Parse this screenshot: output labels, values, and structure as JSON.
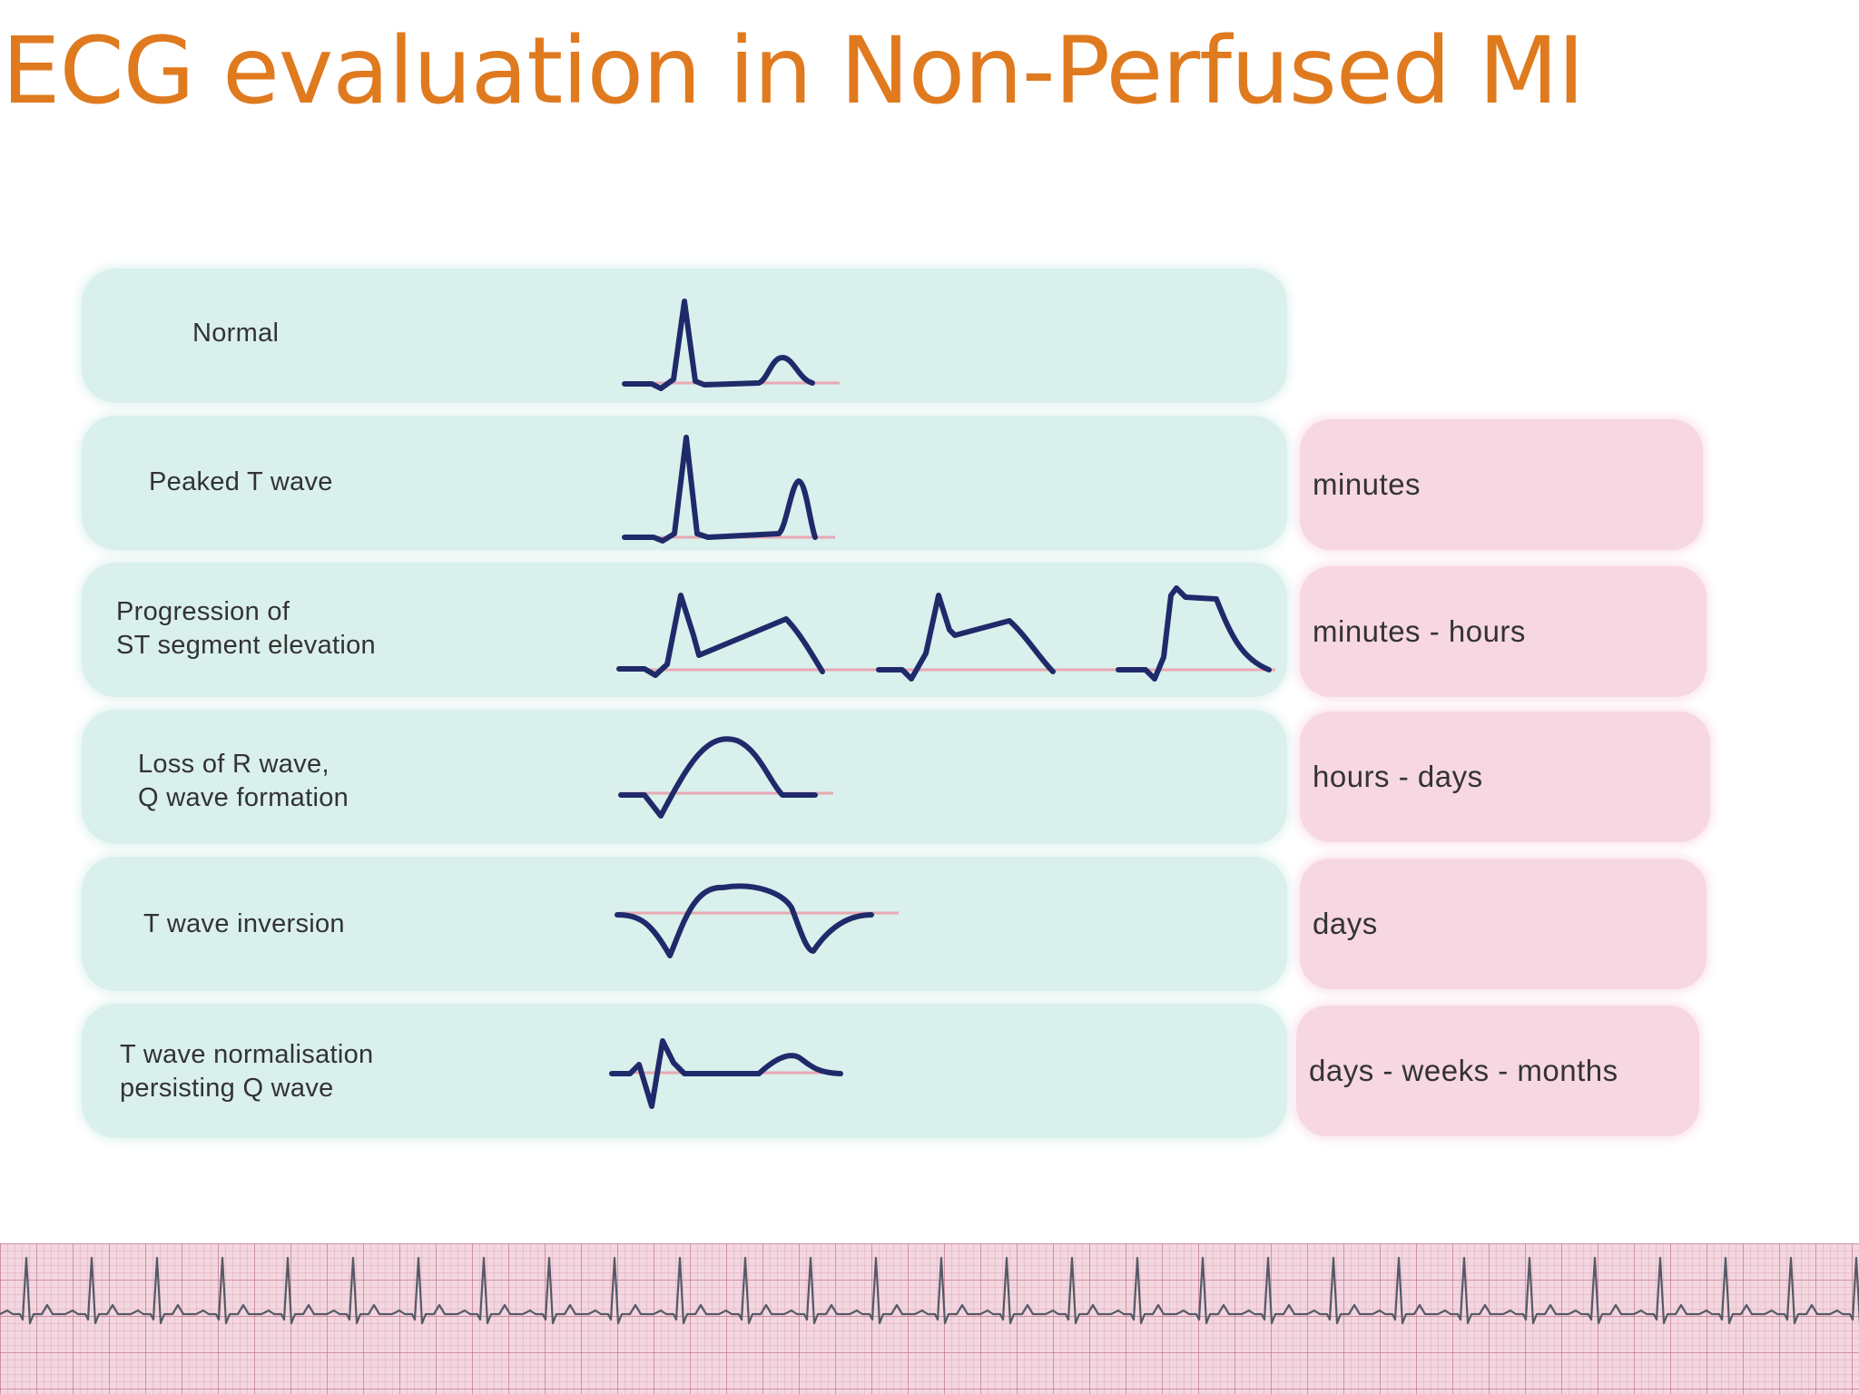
{
  "title": "ECG evaluation in Non-Perfused MI",
  "stages": [
    {
      "label": "Normal",
      "time": ""
    },
    {
      "label": "Peaked T wave",
      "time": "minutes"
    },
    {
      "label": "Progression of\nST segment elevation",
      "time": "minutes - hours"
    },
    {
      "label": "Loss of R wave,\nQ wave formation",
      "time": "hours - days"
    },
    {
      "label": "T wave inversion",
      "time": "days"
    },
    {
      "label": "T wave normalisation\npersisting Q wave",
      "time": "days - weeks - months"
    }
  ],
  "colors": {
    "title": "#e07a1f",
    "stage_panel": "#d9f0ec",
    "time_panel": "#f7d7e2",
    "trace": "#1f2a6a",
    "baseline": "#e8a8b4",
    "ecg_strip_paper": "#f3d6df"
  }
}
